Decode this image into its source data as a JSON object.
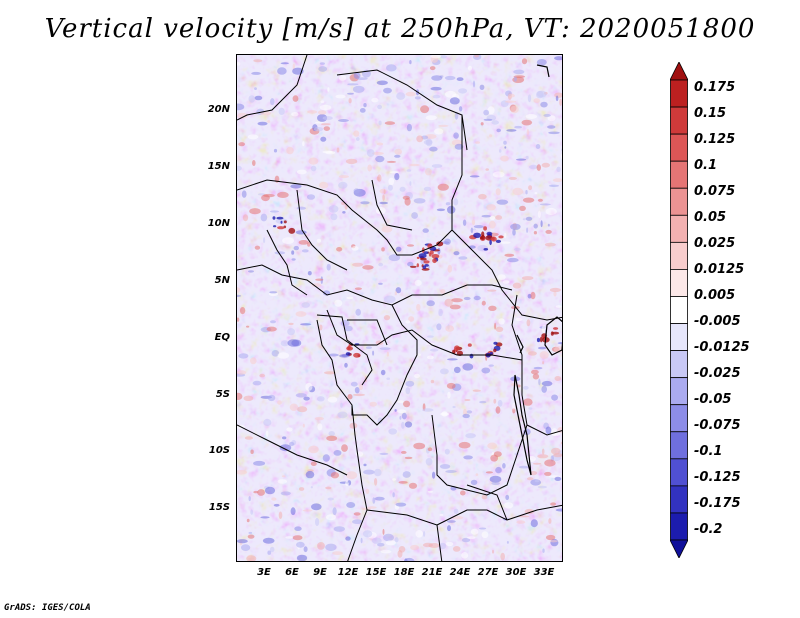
{
  "title": "Vertical velocity [m/s] at 250hPa, VT: 2020051800",
  "footer": "GrADS: IGES/COLA",
  "map": {
    "lat_labels": [
      "20N",
      "15N",
      "10N",
      "5N",
      "EQ",
      "5S",
      "10S",
      "15S"
    ],
    "lon_labels": [
      "3E",
      "6E",
      "9E",
      "12E",
      "15E",
      "18E",
      "21E",
      "24E",
      "27E",
      "30E",
      "33E"
    ]
  },
  "colorbar": {
    "labels": [
      "0.175",
      "0.15",
      "0.125",
      "0.1",
      "0.075",
      "0.05",
      "0.025",
      "0.0125",
      "0.005",
      "-0.005",
      "-0.0125",
      "-0.025",
      "-0.05",
      "-0.075",
      "-0.1",
      "-0.125",
      "-0.175",
      "-0.2"
    ],
    "colors": [
      "#a01010",
      "#bc2020",
      "#cf3a3a",
      "#dd5656",
      "#e57575",
      "#ec9393",
      "#f3b1b1",
      "#f8cdcd",
      "#fce8e8",
      "#ffffff",
      "#e6e6fb",
      "#c9c9f6",
      "#ababf0",
      "#8d8de8",
      "#6f6fde",
      "#5050d2",
      "#3232c0",
      "#1c1cae",
      "#10109a"
    ]
  }
}
